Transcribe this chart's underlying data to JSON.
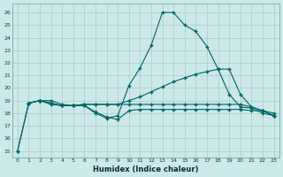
{
  "xlabel": "Humidex (Indice chaleur)",
  "background_color": "#cce8e8",
  "grid_color": "#aacccc",
  "line_color": "#006666",
  "xlim": [
    -0.5,
    23.5
  ],
  "ylim": [
    14.5,
    26.7
  ],
  "yticks": [
    15,
    16,
    17,
    18,
    19,
    20,
    21,
    22,
    23,
    24,
    25,
    26
  ],
  "xticks": [
    0,
    1,
    2,
    3,
    4,
    5,
    6,
    7,
    8,
    9,
    10,
    11,
    12,
    13,
    14,
    15,
    16,
    17,
    18,
    19,
    20,
    21,
    22,
    23
  ],
  "line1_x": [
    0,
    1,
    2,
    3,
    4,
    5,
    6,
    7,
    8,
    9,
    10,
    11,
    12,
    13,
    14,
    15,
    16,
    17,
    18,
    19,
    20,
    21,
    22,
    23
  ],
  "line1_y": [
    15.0,
    18.8,
    19.0,
    18.7,
    18.6,
    18.6,
    18.6,
    18.0,
    17.6,
    17.8,
    20.2,
    21.6,
    23.4,
    26.0,
    26.0,
    25.0,
    24.5,
    23.3,
    21.5,
    19.5,
    18.5,
    18.4,
    18.0,
    17.8
  ],
  "line2_x": [
    0,
    1,
    2,
    3,
    4,
    5,
    6,
    7,
    8,
    9,
    10,
    11,
    12,
    13,
    14,
    15,
    16,
    17,
    18,
    19,
    20,
    21,
    22,
    23
  ],
  "line2_y": [
    15.0,
    18.8,
    19.0,
    18.8,
    18.6,
    18.6,
    18.7,
    18.7,
    18.7,
    18.7,
    19.0,
    19.3,
    19.7,
    20.1,
    20.5,
    20.8,
    21.1,
    21.3,
    21.5,
    21.5,
    19.5,
    18.5,
    18.2,
    18.0
  ],
  "line3_x": [
    1,
    2,
    3,
    4,
    5,
    6,
    7,
    8,
    9,
    10,
    11,
    12,
    13,
    14,
    15,
    16,
    17,
    18,
    19,
    20,
    21,
    22,
    23
  ],
  "line3_y": [
    18.8,
    19.0,
    18.8,
    18.6,
    18.6,
    18.7,
    18.7,
    18.7,
    18.7,
    18.7,
    18.7,
    18.7,
    18.7,
    18.7,
    18.7,
    18.7,
    18.7,
    18.7,
    18.7,
    18.7,
    18.5,
    18.2,
    17.8
  ],
  "line4_x": [
    1,
    2,
    3,
    4,
    5,
    6,
    7,
    8,
    9,
    10,
    11,
    12,
    13,
    14,
    15,
    16,
    17,
    18,
    19,
    20,
    21,
    22,
    23
  ],
  "line4_y": [
    18.8,
    19.0,
    19.0,
    18.7,
    18.6,
    18.6,
    18.1,
    17.7,
    17.5,
    18.2,
    18.3,
    18.3,
    18.3,
    18.3,
    18.3,
    18.3,
    18.3,
    18.3,
    18.3,
    18.3,
    18.2,
    18.2,
    17.8
  ]
}
